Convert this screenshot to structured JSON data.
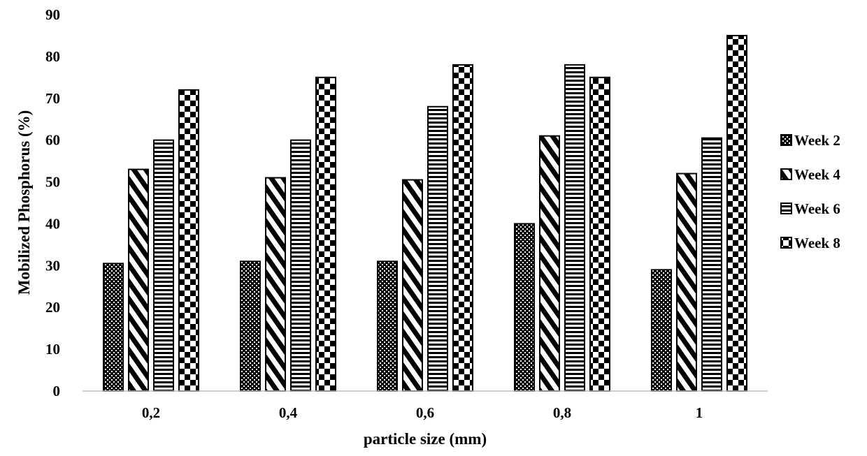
{
  "chart_data": {
    "type": "bar",
    "title": "",
    "xlabel": "particle size (mm)",
    "ylabel": "Mobilized Phosphorus (%)",
    "categories": [
      "0,2",
      "0,4",
      "0,6",
      "0,8",
      "1"
    ],
    "ylim": [
      0,
      90
    ],
    "yticks": [
      0,
      10,
      20,
      30,
      40,
      50,
      60,
      70,
      80,
      90
    ],
    "grid": false,
    "legend_position": "right",
    "series": [
      {
        "name": "Week 2",
        "pattern": "dots",
        "values": [
          30.5,
          31,
          31,
          40,
          29
        ]
      },
      {
        "name": "Week 4",
        "pattern": "diagonal",
        "values": [
          53,
          51,
          50.5,
          61,
          52
        ]
      },
      {
        "name": "Week 6",
        "pattern": "horizontal",
        "values": [
          60,
          60,
          68,
          78,
          60.5
        ]
      },
      {
        "name": "Week 8",
        "pattern": "checker",
        "values": [
          72,
          75,
          78,
          75,
          85
        ]
      }
    ]
  }
}
